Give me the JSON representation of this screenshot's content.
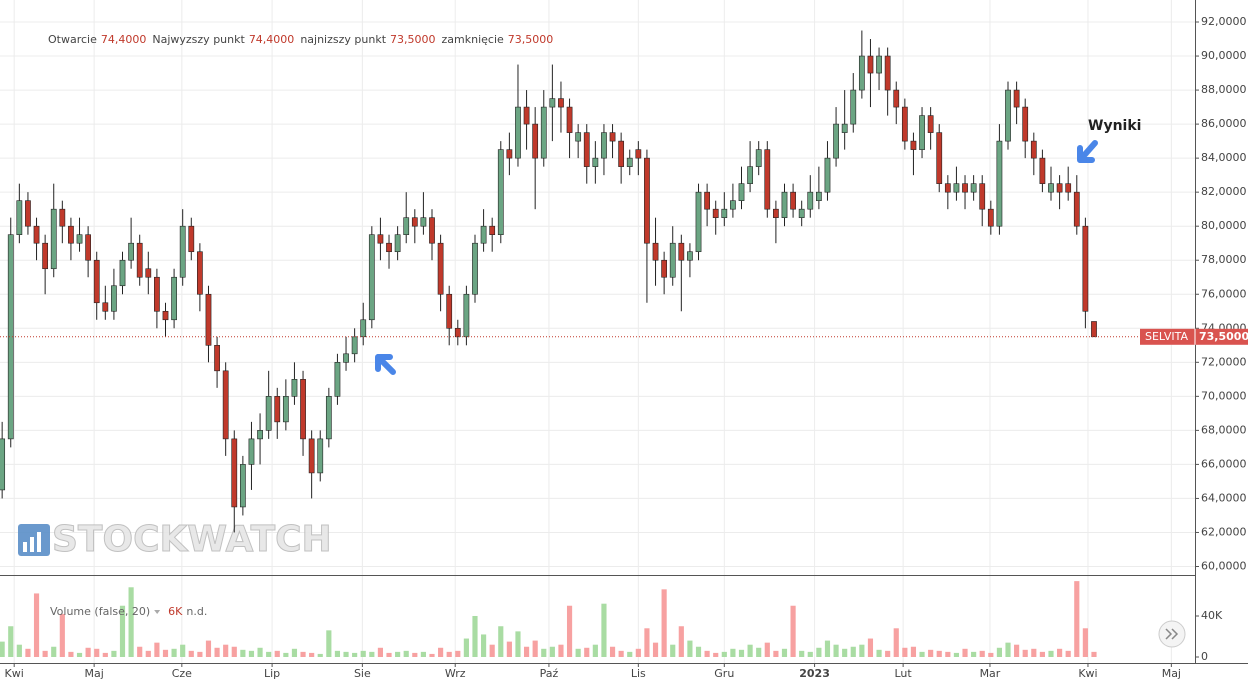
{
  "chart_data": {
    "type": "candlestick",
    "ohlc_legend": [
      {
        "label": "Otwarcie",
        "value": "74,4000"
      },
      {
        "label": "Najwyzszy punkt",
        "value": "74,4000"
      },
      {
        "label": "najnizszy punkt",
        "value": "73,5000"
      },
      {
        "label": "zamknięcie",
        "value": "73,5000"
      }
    ],
    "open": [
      64.5,
      67.5,
      79.5,
      81.5,
      80,
      79,
      77.5,
      81,
      80,
      79,
      79.5,
      78,
      75.5,
      75,
      76.5,
      78,
      79,
      77.5,
      77,
      75,
      74.5,
      77,
      80,
      78.5,
      76,
      73,
      71.5,
      67.5,
      63.5,
      66,
      67.5,
      68,
      70,
      68.5,
      70,
      71,
      67.5,
      65.5,
      67.5,
      70,
      72,
      72.5,
      73.5,
      74.5,
      79.5,
      79,
      78.5,
      79.5,
      80.5,
      80,
      80.5,
      79,
      76,
      74,
      73.5,
      76,
      79,
      80,
      79.5,
      84.5,
      84,
      87,
      86,
      84,
      87,
      87.5,
      87,
      85,
      85.5,
      83.5,
      84,
      85.5,
      85,
      83.5,
      84.5,
      84,
      79,
      78,
      77,
      79,
      78,
      78.5,
      82,
      81,
      80.5,
      81,
      81.5,
      82.5,
      83.5,
      84.5,
      81,
      80.5,
      82,
      80.5,
      81,
      81.5,
      82,
      84,
      85.5,
      86,
      88,
      90,
      89,
      90,
      88,
      87,
      85,
      84.5,
      86.5,
      85.5,
      82.5,
      82,
      82.5,
      82,
      82.5,
      81,
      80,
      85,
      88,
      87,
      85,
      84,
      82,
      82.5,
      82.5,
      82,
      80,
      74.4
    ],
    "high": [
      68.5,
      80.5,
      82.5,
      82,
      80.5,
      79.5,
      82.5,
      81.5,
      80.5,
      80.5,
      80,
      78.5,
      76.5,
      77.5,
      78.5,
      80.5,
      79.5,
      78.5,
      77.5,
      75.5,
      77.5,
      81,
      80.5,
      79,
      76.5,
      73.5,
      72,
      68,
      66.5,
      68.5,
      69,
      71.5,
      70.5,
      71,
      72,
      71.5,
      68,
      68,
      70.5,
      72.5,
      73.5,
      74,
      75.5,
      80,
      80.5,
      79.5,
      80,
      82,
      81,
      82,
      81,
      79.5,
      76.5,
      74.5,
      76.5,
      79.5,
      81,
      80.5,
      85,
      85.5,
      89.5,
      88,
      87,
      88,
      89.5,
      88.5,
      87.5,
      86,
      86,
      85,
      86,
      86,
      85.5,
      84.5,
      85,
      84.5,
      80.5,
      78.5,
      80,
      79.5,
      79,
      82.5,
      82.5,
      81.5,
      82,
      82.5,
      83.5,
      85,
      85,
      85,
      81.5,
      82.5,
      82.5,
      81.5,
      83,
      83.5,
      85,
      87,
      88,
      89,
      91.5,
      91,
      90.5,
      90.5,
      88.5,
      87.5,
      85.5,
      87,
      87,
      86,
      83,
      83.5,
      83,
      83,
      83,
      81.5,
      86,
      88.5,
      88.5,
      87.5,
      85.5,
      84.5,
      83.5,
      83,
      83.5,
      83,
      80.5,
      74.4
    ],
    "low": [
      64,
      67,
      79,
      79.5,
      78,
      76,
      77,
      79,
      78,
      78.5,
      77,
      74.5,
      74.5,
      74.5,
      76,
      77.5,
      76.5,
      76,
      74,
      73.5,
      74,
      76.5,
      78,
      75,
      72,
      70.5,
      66.5,
      62,
      63,
      64.5,
      66,
      67.5,
      67.5,
      68,
      69.5,
      66.5,
      64,
      65,
      67,
      69.5,
      71.5,
      72,
      73,
      74,
      78,
      77.5,
      78,
      79,
      79,
      79.5,
      78,
      75,
      73,
      73,
      73,
      75.5,
      78.5,
      78.5,
      79,
      83,
      83.5,
      84.5,
      81,
      83.5,
      85,
      85.5,
      84,
      84,
      82.5,
      82.5,
      83,
      84,
      82.5,
      83,
      83,
      75.5,
      76.5,
      76,
      76.5,
      75,
      77,
      78,
      80,
      79.5,
      80,
      80.5,
      81,
      82,
      83,
      80.5,
      79,
      80,
      80.5,
      80,
      80.5,
      81,
      81.5,
      83.5,
      84.5,
      85.5,
      87.5,
      87,
      88,
      86.5,
      86,
      84.5,
      83,
      84,
      84.5,
      82,
      81,
      81.5,
      81,
      81.5,
      80,
      79.5,
      79.5,
      84.5,
      86,
      84,
      83,
      82,
      81.5,
      81,
      81.5,
      79.5,
      74,
      73.5
    ],
    "close": [
      67.5,
      79.5,
      81.5,
      80,
      79,
      77.5,
      81,
      80,
      79,
      79.5,
      78,
      75.5,
      75,
      76.5,
      78,
      79,
      77,
      77,
      75,
      74.5,
      77,
      80,
      78.5,
      76,
      73,
      71.5,
      67.5,
      63.5,
      66,
      67.5,
      68,
      70,
      68.5,
      70,
      71,
      67.5,
      65.5,
      67.5,
      70,
      72,
      72.5,
      73.5,
      74.5,
      79.5,
      79,
      78.5,
      79.5,
      80.5,
      80,
      80.5,
      79,
      76,
      74,
      73.5,
      76,
      79,
      80,
      79.5,
      84.5,
      84,
      87,
      86,
      84,
      87,
      87.5,
      87,
      85.5,
      85.5,
      83.5,
      84,
      85.5,
      85,
      83.5,
      84,
      84,
      79,
      78,
      77,
      79,
      78,
      78.5,
      82,
      81,
      80.5,
      81,
      81.5,
      82.5,
      83.5,
      84.5,
      81,
      80.5,
      82,
      81,
      81,
      82,
      82,
      84,
      86,
      86,
      88,
      90,
      89,
      90,
      88,
      87,
      85,
      84.5,
      86.5,
      85.5,
      82.5,
      82,
      82.5,
      82,
      82.5,
      81,
      80,
      85,
      88,
      87,
      85,
      84,
      82.5,
      82.5,
      82,
      82,
      80,
      75,
      73.5
    ],
    "volume": [
      15000,
      30000,
      12000,
      8000,
      62000,
      6000,
      10000,
      42000,
      5000,
      4000,
      9000,
      8000,
      4000,
      6000,
      50000,
      68000,
      10000,
      6000,
      14000,
      7000,
      8000,
      12000,
      6000,
      5000,
      16000,
      9000,
      12000,
      10000,
      7000,
      6000,
      9000,
      5000,
      6000,
      4000,
      8000,
      5000,
      4000,
      3000,
      26000,
      6000,
      5000,
      4000,
      6000,
      5000,
      9000,
      4000,
      5000,
      6000,
      4000,
      5000,
      3000,
      9000,
      5000,
      6000,
      18000,
      40000,
      22000,
      12000,
      30000,
      15000,
      25000,
      10000,
      16000,
      8000,
      10000,
      12000,
      50000,
      8000,
      9000,
      12000,
      52000,
      10000,
      6000,
      5000,
      8000,
      28000,
      14000,
      66000,
      12000,
      30000,
      16000,
      10000,
      6000,
      4000,
      5000,
      8000,
      7000,
      12000,
      9000,
      14000,
      6000,
      8000,
      50000,
      6000,
      5000,
      9000,
      16000,
      12000,
      8000,
      10000,
      12000,
      18000,
      7000,
      6000,
      28000,
      9000,
      10000,
      5000,
      7000,
      6000,
      5000,
      4000,
      8000,
      5000,
      6000,
      4000,
      9000,
      14000,
      12000,
      7000,
      8000,
      5000,
      6000,
      8000,
      6000,
      74000,
      28000,
      5000
    ],
    "up_color": "#6ba583",
    "down_color": "#c0392b",
    "volume_up_color": "#a9dca3",
    "volume_down_color": "#f7a1a1",
    "xlim": [
      -0.25,
      138.75
    ],
    "xticks": [
      {
        "value": 1.4,
        "label": "Kwi"
      },
      {
        "value": 10.7,
        "label": "Maj"
      },
      {
        "value": 20.9,
        "label": "Cze"
      },
      {
        "value": 31.4,
        "label": "Lip"
      },
      {
        "value": 41.9,
        "label": "Sie"
      },
      {
        "value": 52.7,
        "label": "Wrz"
      },
      {
        "value": 63.6,
        "label": "Paź"
      },
      {
        "value": 74,
        "label": "Lis"
      },
      {
        "value": 84,
        "label": "Gru"
      },
      {
        "value": 94.5,
        "label": "2023"
      },
      {
        "value": 104.8,
        "label": "Lut"
      },
      {
        "value": 114.9,
        "label": "Mar"
      },
      {
        "value": 126.3,
        "label": "Kwi"
      },
      {
        "value": 136,
        "label": "Maj"
      }
    ],
    "ylim": [
      59.5,
      93.0
    ],
    "yticks": [
      {
        "value": 60,
        "label": "60,0000"
      },
      {
        "value": 62,
        "label": "62,0000"
      },
      {
        "value": 64,
        "label": "64,0000"
      },
      {
        "value": 66,
        "label": "66,0000"
      },
      {
        "value": 68,
        "label": "68,0000"
      },
      {
        "value": 70,
        "label": "70,0000"
      },
      {
        "value": 72,
        "label": "72,0000"
      },
      {
        "value": 74,
        "label": "74,0000"
      },
      {
        "value": 76,
        "label": "76,0000"
      },
      {
        "value": 78,
        "label": "78,0000"
      },
      {
        "value": 80,
        "label": "80,0000"
      },
      {
        "value": 82,
        "label": "82,0000"
      },
      {
        "value": 84,
        "label": "84,0000"
      },
      {
        "value": 86,
        "label": "86,0000"
      },
      {
        "value": 88,
        "label": "88,0000"
      },
      {
        "value": 90,
        "label": "90,0000"
      },
      {
        "value": 92,
        "label": "92,0000"
      }
    ],
    "volume_ylim": [
      -5850,
      79000
    ],
    "volume_yticks": [
      0,
      {
        "value": 40000,
        "label": "40K"
      }
    ],
    "grid": true,
    "price_tag": {
      "symbol": "SELVITA",
      "label": "73,5000"
    },
    "annotation": "Wyniki",
    "watermark": "STOCKWATCH",
    "volume_legend": {
      "label": "Volume (false, 20)",
      "value": "6K",
      "extra": "n.d."
    }
  }
}
